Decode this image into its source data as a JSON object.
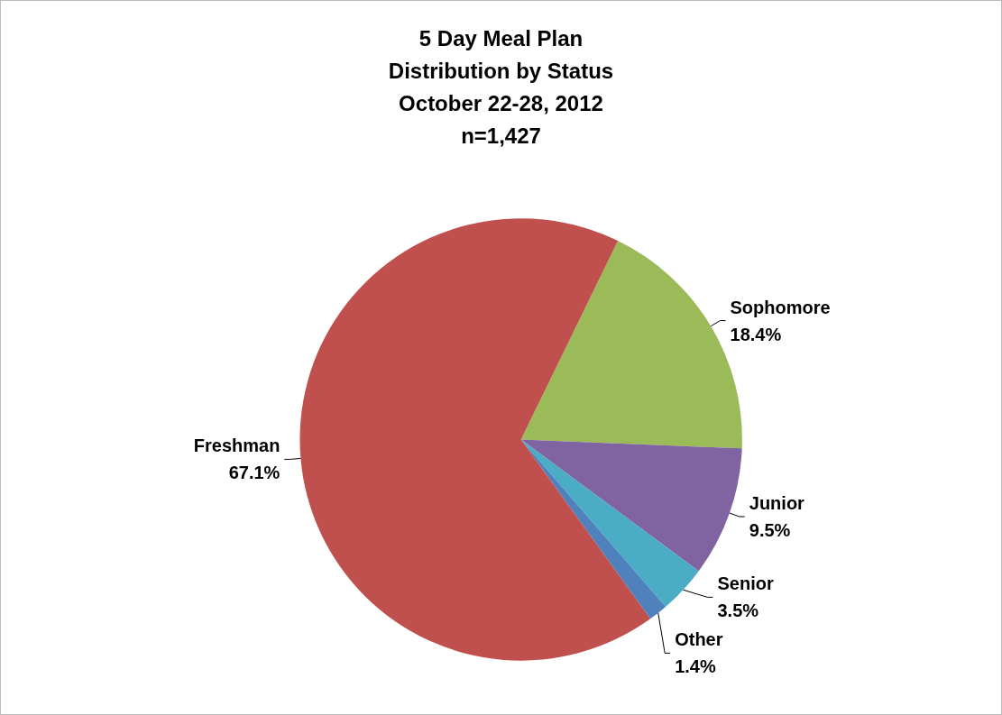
{
  "chart_data": {
    "type": "pie",
    "title": "5 Day Meal Plan\nDistribution by Status",
    "subtitle": "October 22-28, 2012\nn=1,427",
    "categories": [
      "Sophomore",
      "Junior",
      "Senior",
      "Other",
      "Freshman"
    ],
    "values": [
      18.4,
      9.5,
      3.5,
      1.4,
      67.1
    ],
    "value_labels": [
      "18.4%",
      "9.5%",
      "3.5%",
      "1.4%",
      "67.1%"
    ],
    "colors": [
      "#9bbb59",
      "#8064a2",
      "#4bacc6",
      "#4f81bd",
      "#c0504d"
    ],
    "legend": false
  }
}
